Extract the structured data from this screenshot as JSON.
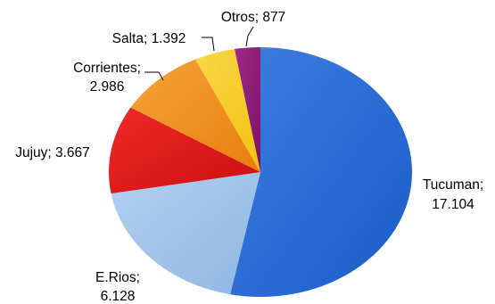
{
  "chart_data": {
    "type": "pie",
    "slices": [
      {
        "label": "Tucuman",
        "value": 17104,
        "value_text": "17.104",
        "color": "#1a5cc8",
        "color_light": "#3d7ee0",
        "separator": ";",
        "leader": false
      },
      {
        "label": "E.Rios",
        "value": 6128,
        "value_text": "6.128",
        "color": "#8fb6e3",
        "color_light": "#b3d0f0",
        "separator": ";",
        "leader": false
      },
      {
        "label": "Jujuy",
        "value": 3667,
        "value_text": "3.667",
        "color": "#cc0f0f",
        "color_light": "#ee2a2a",
        "separator": ";",
        "leader": false
      },
      {
        "label": "Corrientes",
        "value": 2986,
        "value_text": "2.986",
        "color": "#e87e0a",
        "color_light": "#f6a33a",
        "separator": ";",
        "leader": true
      },
      {
        "label": "Salta",
        "value": 1392,
        "value_text": "1.392",
        "color": "#f2c20c",
        "color_light": "#f8d84a",
        "separator": ";",
        "leader": true
      },
      {
        "label": "Otros",
        "value": 877,
        "value_text": "877",
        "color": "#7c1268",
        "color_light": "#9c2a88",
        "separator": ";",
        "leader": true
      }
    ],
    "start_angle": "top",
    "direction": "clockwise",
    "legend": "none"
  }
}
